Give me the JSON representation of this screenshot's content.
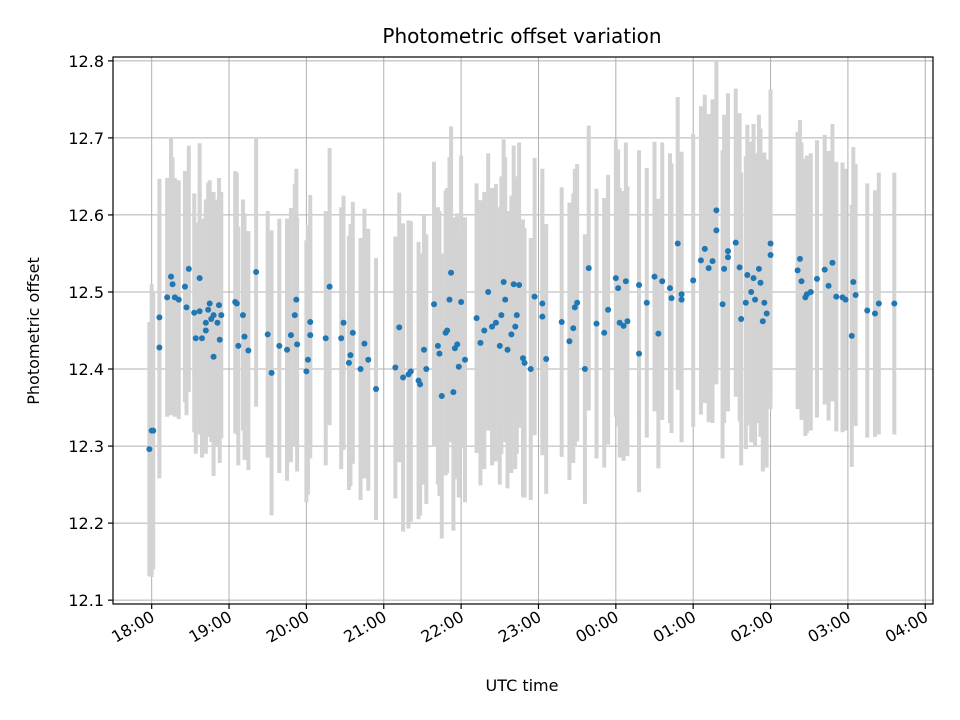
{
  "chart_data": {
    "type": "scatter",
    "title": "Photometric offset variation",
    "xlabel": "UTC time",
    "ylabel": "Photometric offset",
    "x_unit": "UTC time (hours relative to 18:00; values >= 6 wrap past midnight)",
    "xlim_hours": [
      -0.5,
      10.1
    ],
    "ylim": [
      12.095,
      12.805
    ],
    "xticks": [
      "18:00",
      "19:00",
      "20:00",
      "21:00",
      "22:00",
      "23:00",
      "00:00",
      "01:00",
      "02:00",
      "03:00",
      "04:00"
    ],
    "yticks": [
      "12.1",
      "12.2",
      "12.3",
      "12.4",
      "12.5",
      "12.6",
      "12.7",
      "12.8"
    ],
    "grid": true,
    "series": [
      {
        "name": "",
        "marker_color": "#1f77b4",
        "errorbar_color": "#d3d3d3",
        "points": [
          [
            -0.03,
            12.296,
            0.165
          ],
          [
            0.0,
            12.32,
            0.19
          ],
          [
            0.02,
            12.32,
            0.18
          ],
          [
            0.1,
            12.428,
            0.17
          ],
          [
            0.1,
            12.467,
            0.18
          ],
          [
            0.2,
            12.493,
            0.155
          ],
          [
            0.25,
            12.52,
            0.18
          ],
          [
            0.27,
            12.51,
            0.165
          ],
          [
            0.3,
            12.493,
            0.155
          ],
          [
            0.35,
            12.49,
            0.155
          ],
          [
            0.43,
            12.507,
            0.15
          ],
          [
            0.45,
            12.48,
            0.14
          ],
          [
            0.48,
            12.53,
            0.16
          ],
          [
            0.55,
            12.473,
            0.155
          ],
          [
            0.57,
            12.44,
            0.15
          ],
          [
            0.62,
            12.518,
            0.175
          ],
          [
            0.62,
            12.475,
            0.16
          ],
          [
            0.65,
            12.44,
            0.155
          ],
          [
            0.7,
            12.46,
            0.16
          ],
          [
            0.7,
            12.45,
            0.16
          ],
          [
            0.73,
            12.477,
            0.165
          ],
          [
            0.75,
            12.485,
            0.16
          ],
          [
            0.77,
            12.465,
            0.16
          ],
          [
            0.8,
            12.416,
            0.155
          ],
          [
            0.8,
            12.47,
            0.16
          ],
          [
            0.85,
            12.46,
            0.16
          ],
          [
            0.87,
            12.483,
            0.165
          ],
          [
            0.88,
            12.438,
            0.16
          ],
          [
            0.9,
            12.47,
            0.16
          ],
          [
            1.08,
            12.487,
            0.17
          ],
          [
            1.1,
            12.485,
            0.17
          ],
          [
            1.12,
            12.43,
            0.155
          ],
          [
            1.18,
            12.47,
            0.15
          ],
          [
            1.2,
            12.442,
            0.16
          ],
          [
            1.25,
            12.424,
            0.155
          ],
          [
            1.35,
            12.526,
            0.175
          ],
          [
            1.5,
            12.445,
            0.16
          ],
          [
            1.55,
            12.395,
            0.185
          ],
          [
            1.65,
            12.43,
            0.165
          ],
          [
            1.75,
            12.425,
            0.17
          ],
          [
            1.8,
            12.444,
            0.165
          ],
          [
            1.85,
            12.47,
            0.17
          ],
          [
            1.87,
            12.49,
            0.17
          ],
          [
            1.88,
            12.432,
            0.165
          ],
          [
            2.0,
            12.397,
            0.17
          ],
          [
            2.02,
            12.412,
            0.175
          ],
          [
            2.05,
            12.461,
            0.165
          ],
          [
            2.05,
            12.444,
            0.16
          ],
          [
            2.25,
            12.44,
            0.165
          ],
          [
            2.3,
            12.507,
            0.18
          ],
          [
            2.45,
            12.44,
            0.17
          ],
          [
            2.48,
            12.46,
            0.165
          ],
          [
            2.55,
            12.408,
            0.165
          ],
          [
            2.57,
            12.418,
            0.17
          ],
          [
            2.6,
            12.447,
            0.17
          ],
          [
            2.7,
            12.4,
            0.17
          ],
          [
            2.75,
            12.433,
            0.175
          ],
          [
            2.8,
            12.412,
            0.17
          ],
          [
            2.9,
            12.374,
            0.17
          ],
          [
            3.15,
            12.402,
            0.17
          ],
          [
            3.2,
            12.454,
            0.175
          ],
          [
            3.25,
            12.389,
            0.2
          ],
          [
            3.32,
            12.393,
            0.2
          ],
          [
            3.35,
            12.397,
            0.195
          ],
          [
            3.45,
            12.385,
            0.18
          ],
          [
            3.47,
            12.38,
            0.17
          ],
          [
            3.52,
            12.425,
            0.175
          ],
          [
            3.55,
            12.4,
            0.175
          ],
          [
            3.65,
            12.484,
            0.185
          ],
          [
            3.7,
            12.43,
            0.18
          ],
          [
            3.72,
            12.42,
            0.185
          ],
          [
            3.75,
            12.365,
            0.185
          ],
          [
            3.8,
            12.447,
            0.185
          ],
          [
            3.82,
            12.45,
            0.185
          ],
          [
            3.85,
            12.49,
            0.185
          ],
          [
            3.87,
            12.525,
            0.19
          ],
          [
            3.9,
            12.37,
            0.18
          ],
          [
            3.92,
            12.427,
            0.17
          ],
          [
            3.95,
            12.432,
            0.17
          ],
          [
            3.97,
            12.403,
            0.17
          ],
          [
            4.0,
            12.487,
            0.19
          ],
          [
            4.05,
            12.412,
            0.185
          ],
          [
            4.2,
            12.466,
            0.175
          ],
          [
            4.25,
            12.434,
            0.185
          ],
          [
            4.3,
            12.45,
            0.18
          ],
          [
            4.35,
            12.5,
            0.18
          ],
          [
            4.4,
            12.455,
            0.18
          ],
          [
            4.45,
            12.46,
            0.18
          ],
          [
            4.5,
            12.43,
            0.18
          ],
          [
            4.52,
            12.47,
            0.18
          ],
          [
            4.55,
            12.513,
            0.185
          ],
          [
            4.57,
            12.49,
            0.185
          ],
          [
            4.6,
            12.425,
            0.18
          ],
          [
            4.65,
            12.445,
            0.18
          ],
          [
            4.68,
            12.51,
            0.18
          ],
          [
            4.7,
            12.455,
            0.185
          ],
          [
            4.72,
            12.47,
            0.18
          ],
          [
            4.75,
            12.509,
            0.185
          ],
          [
            4.8,
            12.414,
            0.18
          ],
          [
            4.82,
            12.408,
            0.175
          ],
          [
            4.9,
            12.4,
            0.17
          ],
          [
            4.95,
            12.494,
            0.18
          ],
          [
            5.05,
            12.485,
            0.175
          ],
          [
            5.05,
            12.468,
            0.18
          ],
          [
            5.1,
            12.413,
            0.175
          ],
          [
            5.3,
            12.461,
            0.175
          ],
          [
            5.4,
            12.436,
            0.18
          ],
          [
            5.45,
            12.453,
            0.175
          ],
          [
            5.47,
            12.48,
            0.18
          ],
          [
            5.5,
            12.486,
            0.18
          ],
          [
            5.6,
            12.4,
            0.175
          ],
          [
            5.65,
            12.531,
            0.185
          ],
          [
            5.75,
            12.459,
            0.175
          ],
          [
            5.85,
            12.447,
            0.175
          ],
          [
            5.9,
            12.477,
            0.175
          ],
          [
            6.0,
            12.518,
            0.18
          ],
          [
            6.03,
            12.505,
            0.18
          ],
          [
            6.05,
            12.46,
            0.175
          ],
          [
            6.1,
            12.456,
            0.175
          ],
          [
            6.13,
            12.514,
            0.18
          ],
          [
            6.15,
            12.462,
            0.175
          ],
          [
            6.3,
            12.42,
            0.18
          ],
          [
            6.3,
            12.509,
            0.175
          ],
          [
            6.4,
            12.486,
            0.175
          ],
          [
            6.5,
            12.52,
            0.175
          ],
          [
            6.55,
            12.446,
            0.175
          ],
          [
            6.6,
            12.514,
            0.18
          ],
          [
            6.7,
            12.505,
            0.175
          ],
          [
            6.72,
            12.492,
            0.175
          ],
          [
            6.8,
            12.563,
            0.19
          ],
          [
            6.85,
            12.49,
            0.185
          ],
          [
            6.85,
            12.497,
            0.185
          ],
          [
            7.0,
            12.515,
            0.19
          ],
          [
            7.1,
            12.541,
            0.2
          ],
          [
            7.15,
            12.556,
            0.2
          ],
          [
            7.2,
            12.531,
            0.2
          ],
          [
            7.25,
            12.54,
            0.21
          ],
          [
            7.3,
            12.58,
            0.2
          ],
          [
            7.3,
            12.606,
            0.195
          ],
          [
            7.38,
            12.484,
            0.2
          ],
          [
            7.4,
            12.53,
            0.2
          ],
          [
            7.45,
            12.553,
            0.205
          ],
          [
            7.45,
            12.545,
            0.2
          ],
          [
            7.55,
            12.564,
            0.2
          ],
          [
            7.6,
            12.532,
            0.2
          ],
          [
            7.62,
            12.465,
            0.19
          ],
          [
            7.68,
            12.486,
            0.19
          ],
          [
            7.7,
            12.522,
            0.195
          ],
          [
            7.75,
            12.5,
            0.195
          ],
          [
            7.78,
            12.518,
            0.2
          ],
          [
            7.8,
            12.49,
            0.19
          ],
          [
            7.85,
            12.53,
            0.2
          ],
          [
            7.87,
            12.512,
            0.2
          ],
          [
            7.9,
            12.462,
            0.195
          ],
          [
            7.92,
            12.486,
            0.195
          ],
          [
            7.95,
            12.472,
            0.2
          ],
          [
            8.0,
            12.563,
            0.2
          ],
          [
            8.0,
            12.548,
            0.2
          ],
          [
            8.35,
            12.528,
            0.18
          ],
          [
            8.38,
            12.543,
            0.18
          ],
          [
            8.4,
            12.514,
            0.18
          ],
          [
            8.45,
            12.493,
            0.18
          ],
          [
            8.47,
            12.497,
            0.18
          ],
          [
            8.52,
            12.5,
            0.18
          ],
          [
            8.6,
            12.517,
            0.18
          ],
          [
            8.7,
            12.529,
            0.175
          ],
          [
            8.75,
            12.508,
            0.175
          ],
          [
            8.8,
            12.538,
            0.18
          ],
          [
            8.85,
            12.494,
            0.175
          ],
          [
            8.93,
            12.493,
            0.175
          ],
          [
            8.97,
            12.49,
            0.17
          ],
          [
            9.05,
            12.443,
            0.17
          ],
          [
            9.07,
            12.513,
            0.175
          ],
          [
            9.1,
            12.496,
            0.17
          ],
          [
            9.25,
            12.476,
            0.165
          ],
          [
            9.35,
            12.472,
            0.16
          ],
          [
            9.4,
            12.485,
            0.17
          ],
          [
            9.6,
            12.485,
            0.17
          ]
        ]
      }
    ]
  }
}
